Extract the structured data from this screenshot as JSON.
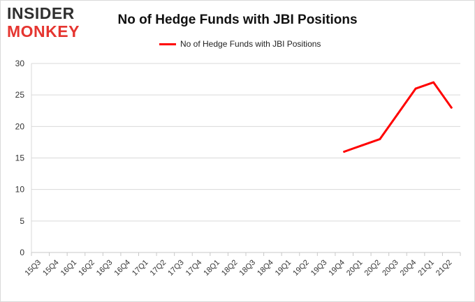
{
  "brand": {
    "line1": "INSIDER",
    "line2": "MONKEY"
  },
  "chart_data": {
    "type": "line",
    "title": "No of Hedge Funds with JBI Positions",
    "xlabel": "",
    "ylabel": "",
    "categories": [
      "15Q3",
      "15Q4",
      "16Q1",
      "16Q2",
      "16Q3",
      "16Q4",
      "17Q1",
      "17Q2",
      "17Q3",
      "17Q4",
      "18Q1",
      "18Q2",
      "18Q3",
      "18Q4",
      "19Q1",
      "19Q2",
      "19Q3",
      "19Q4",
      "20Q1",
      "20Q2",
      "20Q3",
      "20Q4",
      "21Q1",
      "21Q2"
    ],
    "series": [
      {
        "name": "No of Hedge Funds with JBI Positions",
        "color": "#ff0000",
        "values": [
          null,
          null,
          null,
          null,
          null,
          null,
          null,
          null,
          null,
          null,
          null,
          null,
          null,
          null,
          null,
          null,
          null,
          16,
          17,
          18,
          22,
          26,
          27,
          23
        ]
      }
    ],
    "ylim": [
      0,
      30
    ],
    "yticks": [
      0,
      5,
      10,
      15,
      20,
      25,
      30
    ],
    "grid": true,
    "legend": "top-center"
  }
}
